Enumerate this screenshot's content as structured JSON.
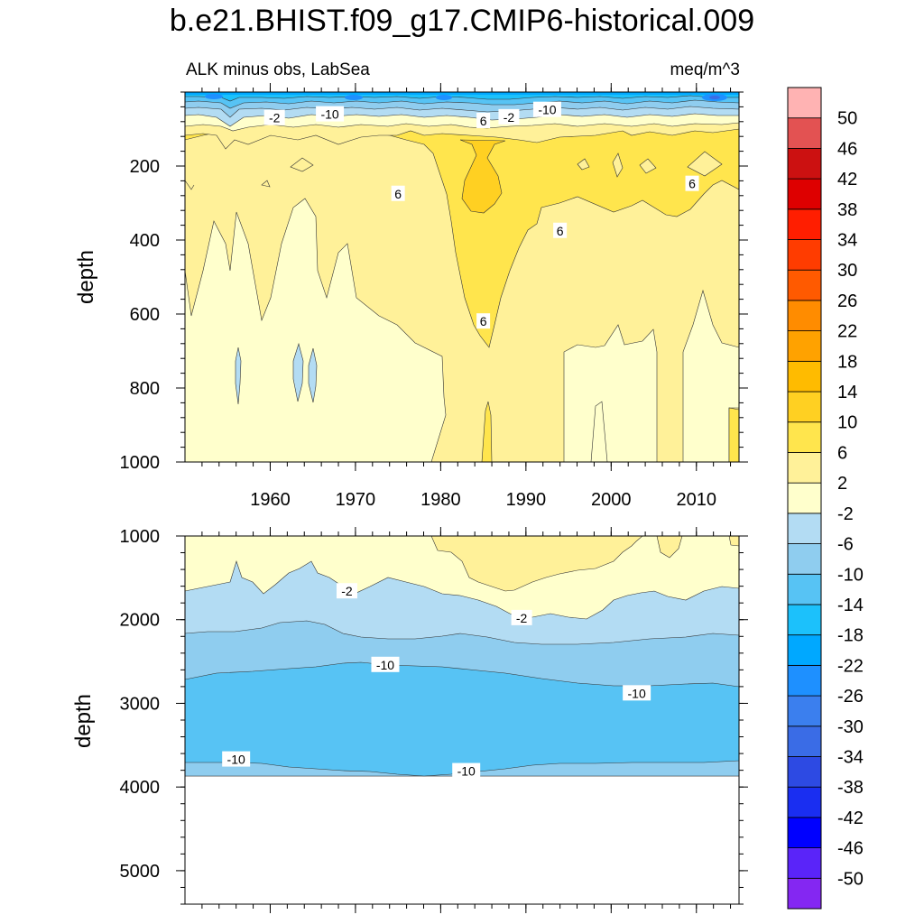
{
  "chart_data": {
    "type": "contour",
    "title": "b.e21.BHIST.f09_g17.CMIP6-historical.009",
    "subtitle_left": "ALK minus obs, LabSea",
    "subtitle_right": "meq/m^3",
    "xlim": [
      1950,
      2015
    ],
    "x_ticks": [
      1960,
      1970,
      1980,
      1990,
      2000,
      2010
    ],
    "panels": [
      {
        "name": "upper",
        "ylabel": "depth",
        "ylim": [
          0,
          1000
        ],
        "y_ticks": [
          200,
          400,
          600,
          800,
          1000
        ],
        "y_tick_labels": [
          "200",
          "400",
          "600",
          "800",
          "1000"
        ],
        "show_x_labels": true,
        "contour_labels": [
          {
            "text": "-2",
            "x": 1960.5,
            "y": 70
          },
          {
            "text": "-10",
            "x": 1967,
            "y": 60
          },
          {
            "text": "6",
            "x": 1985,
            "y": 78
          },
          {
            "text": "-2",
            "x": 1988,
            "y": 68
          },
          {
            "text": "-10",
            "x": 1992.5,
            "y": 48
          },
          {
            "text": "6",
            "x": 1975,
            "y": 275
          },
          {
            "text": "6",
            "x": 1994,
            "y": 375
          },
          {
            "text": "6",
            "x": 2009.5,
            "y": 248
          },
          {
            "text": "6",
            "x": 1985,
            "y": 620
          }
        ]
      },
      {
        "name": "lower",
        "ylabel": "depth",
        "ylim": [
          1000,
          5400
        ],
        "y_ticks": [
          1000,
          2000,
          3000,
          4000,
          5000
        ],
        "y_tick_labels": [
          "1000",
          "2000",
          "3000",
          "4000",
          "5000"
        ],
        "show_x_labels": false,
        "contour_labels": [
          {
            "text": "-2",
            "x": 1969,
            "y": 1660
          },
          {
            "text": "-2",
            "x": 1989.5,
            "y": 1980
          },
          {
            "text": "-10",
            "x": 1973.5,
            "y": 2540
          },
          {
            "text": "-10",
            "x": 2003,
            "y": 2880
          },
          {
            "text": "-10",
            "x": 1956,
            "y": 3670
          },
          {
            "text": "-10",
            "x": 1983,
            "y": 3810
          }
        ]
      }
    ],
    "colorbar": {
      "levels": [
        "-50",
        "-46",
        "-42",
        "-38",
        "-34",
        "-30",
        "-26",
        "-22",
        "-18",
        "-14",
        "-10",
        "-6",
        "-2",
        "2",
        "6",
        "10",
        "14",
        "18",
        "22",
        "26",
        "30",
        "34",
        "38",
        "42",
        "46",
        "50"
      ],
      "colors_bottom_to_top": [
        "#8427f2",
        "#5a24f9",
        "#0000ff",
        "#1a2ef1",
        "#2d4ae3",
        "#3a6ce6",
        "#3b7fee",
        "#1e90ff",
        "#00a8ff",
        "#1cc1fb",
        "#57c3f4",
        "#8fcdef",
        "#b3dcf3",
        "#ffffcc",
        "#fff199",
        "#ffe54d",
        "#ffd022",
        "#ffbb00",
        "#ffa200",
        "#ff8c00",
        "#ff5a00",
        "#ff3c00",
        "#ff1e00",
        "#de0000",
        "#cc1111",
        "#e35252",
        "#ffb3b3"
      ]
    },
    "color_legend": {
      "c_lt_m50": "#8427f2",
      "c_m14_m10": "#57c3f4",
      "c_m10_m6": "#8fcdef",
      "c_m6_m2": "#b3dcf3",
      "c_m2_2": "#ffffcc",
      "c_2_6": "#fff199",
      "c_6_10": "#ffe54d",
      "c_10_14": "#ffd022",
      "c_gt_50": "#ffb3b3"
    }
  }
}
